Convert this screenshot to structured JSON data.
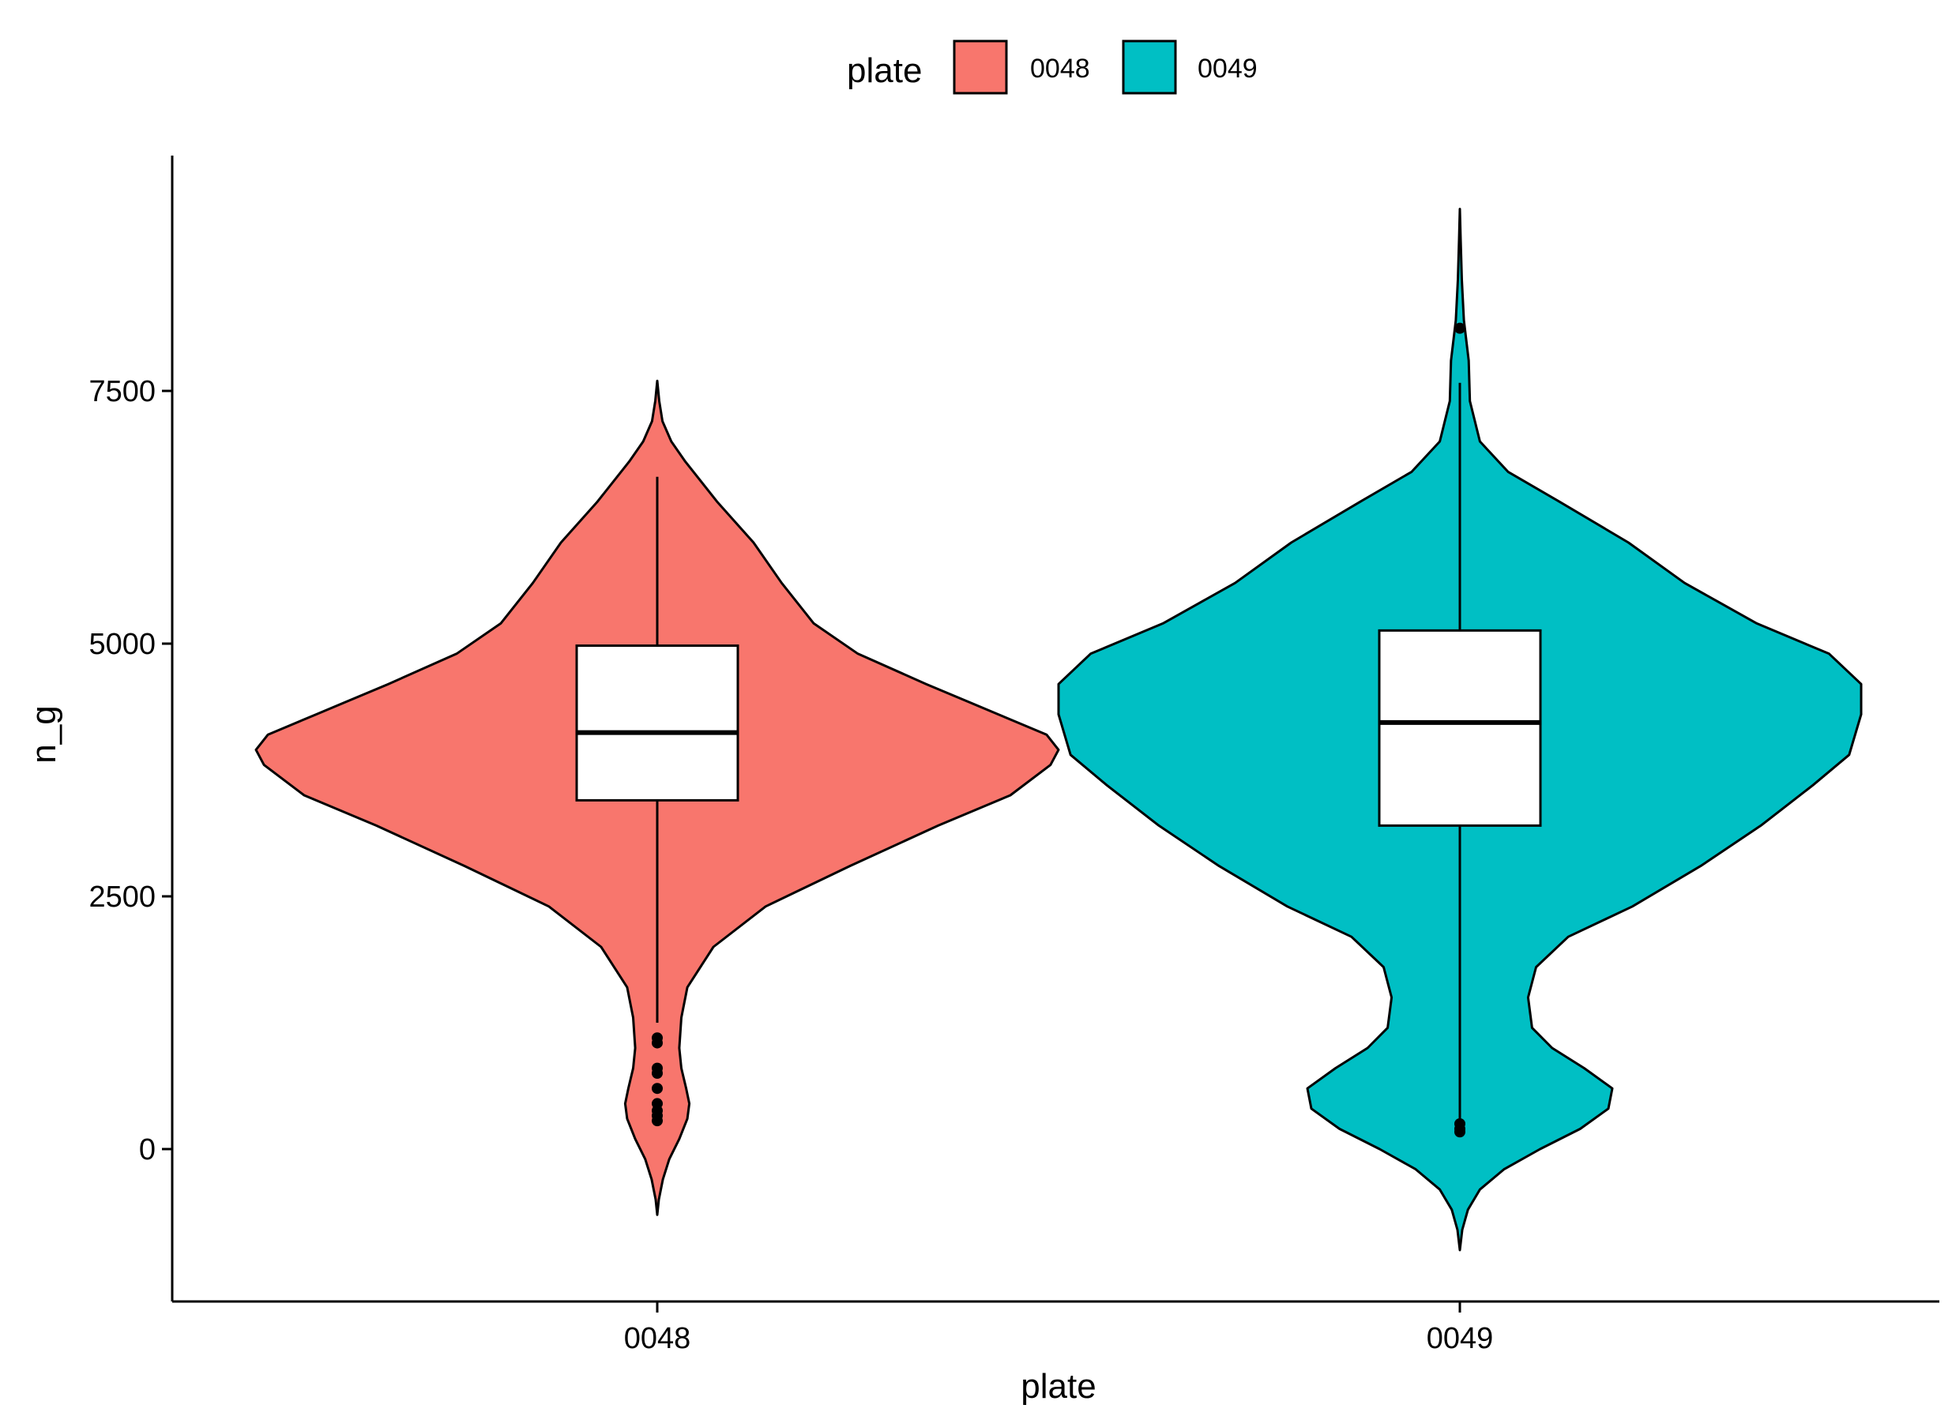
{
  "chart_data": {
    "type": "violin",
    "xlabel": "plate",
    "ylabel": "n_g",
    "ylim": [
      -1500,
      9700
    ],
    "yticks": [
      0,
      2500,
      5000,
      7500
    ],
    "categories": [
      "0048",
      "0049"
    ],
    "legend": {
      "title": "plate",
      "position": "top",
      "entries": [
        {
          "label": "0048",
          "color": "#F8766D"
        },
        {
          "label": "0049",
          "color": "#00BFC4"
        }
      ]
    },
    "grid": false,
    "series": [
      {
        "name": "0048",
        "color": "#F8766D",
        "box": {
          "q1": 3450,
          "median": 4120,
          "q3": 4980,
          "whisker_low": 1250,
          "whisker_high": 6650
        },
        "outliers": [
          1100,
          1050,
          800,
          750,
          600,
          450,
          380,
          330,
          280
        ],
        "density": [
          [
            -650,
            0.0
          ],
          [
            -500,
            0.004
          ],
          [
            -300,
            0.014
          ],
          [
            -100,
            0.03
          ],
          [
            100,
            0.055
          ],
          [
            300,
            0.075
          ],
          [
            450,
            0.08
          ],
          [
            600,
            0.072
          ],
          [
            800,
            0.06
          ],
          [
            1000,
            0.055
          ],
          [
            1300,
            0.06
          ],
          [
            1600,
            0.075
          ],
          [
            2000,
            0.14
          ],
          [
            2400,
            0.27
          ],
          [
            2800,
            0.48
          ],
          [
            3200,
            0.7
          ],
          [
            3500,
            0.88
          ],
          [
            3800,
            0.98
          ],
          [
            3950,
            1.0
          ],
          [
            4100,
            0.97
          ],
          [
            4300,
            0.85
          ],
          [
            4600,
            0.67
          ],
          [
            4900,
            0.5
          ],
          [
            5200,
            0.39
          ],
          [
            5600,
            0.31
          ],
          [
            6000,
            0.24
          ],
          [
            6400,
            0.15
          ],
          [
            6800,
            0.07
          ],
          [
            7000,
            0.035
          ],
          [
            7200,
            0.013
          ],
          [
            7400,
            0.005
          ],
          [
            7600,
            0.0
          ]
        ]
      },
      {
        "name": "0049",
        "color": "#00BFC4",
        "box": {
          "q1": 3200,
          "median": 4220,
          "q3": 5130,
          "whisker_low": 300,
          "whisker_high": 7580
        },
        "outliers": [
          8120,
          250,
          200,
          170
        ],
        "density": [
          [
            -1000,
            0.0
          ],
          [
            -800,
            0.006
          ],
          [
            -600,
            0.02
          ],
          [
            -400,
            0.05
          ],
          [
            -200,
            0.11
          ],
          [
            0,
            0.2
          ],
          [
            200,
            0.3
          ],
          [
            400,
            0.37
          ],
          [
            600,
            0.38
          ],
          [
            800,
            0.31
          ],
          [
            1000,
            0.23
          ],
          [
            1200,
            0.18
          ],
          [
            1500,
            0.17
          ],
          [
            1800,
            0.19
          ],
          [
            2100,
            0.27
          ],
          [
            2400,
            0.43
          ],
          [
            2800,
            0.6
          ],
          [
            3200,
            0.75
          ],
          [
            3600,
            0.88
          ],
          [
            3900,
            0.97
          ],
          [
            4300,
            1.0
          ],
          [
            4600,
            1.0
          ],
          [
            4900,
            0.92
          ],
          [
            5200,
            0.74
          ],
          [
            5600,
            0.56
          ],
          [
            6000,
            0.42
          ],
          [
            6400,
            0.25
          ],
          [
            6700,
            0.12
          ],
          [
            7000,
            0.05
          ],
          [
            7400,
            0.025
          ],
          [
            7800,
            0.022
          ],
          [
            8200,
            0.01
          ],
          [
            8600,
            0.005
          ],
          [
            9000,
            0.002
          ],
          [
            9300,
            0.0
          ]
        ]
      }
    ]
  }
}
